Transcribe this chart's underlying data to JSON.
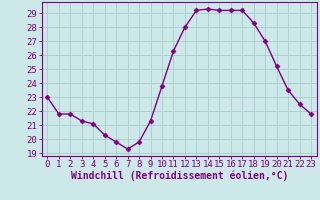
{
  "hours": [
    0,
    1,
    2,
    3,
    4,
    5,
    6,
    7,
    8,
    9,
    10,
    11,
    12,
    13,
    14,
    15,
    16,
    17,
    18,
    19,
    20,
    21,
    22,
    23
  ],
  "values": [
    23,
    21.8,
    21.8,
    21.3,
    21.1,
    20.3,
    19.8,
    19.3,
    19.8,
    21.3,
    23.8,
    26.3,
    28.0,
    29.2,
    29.3,
    29.2,
    29.2,
    29.2,
    28.3,
    27.0,
    25.2,
    23.5,
    22.5,
    21.8
  ],
  "line_color": "#800080",
  "marker": "D",
  "marker_size": 2.5,
  "bg_color": "#cce8e8",
  "grid_color": "#aacccc",
  "xlabel": "Windchill (Refroidissement éolien,°C)",
  "ylabel_ticks": [
    19,
    20,
    21,
    22,
    23,
    24,
    25,
    26,
    27,
    28,
    29
  ],
  "ylim": [
    18.8,
    29.8
  ],
  "xlim": [
    -0.5,
    23.5
  ],
  "tick_fontsize": 6.5,
  "label_fontsize": 7
}
